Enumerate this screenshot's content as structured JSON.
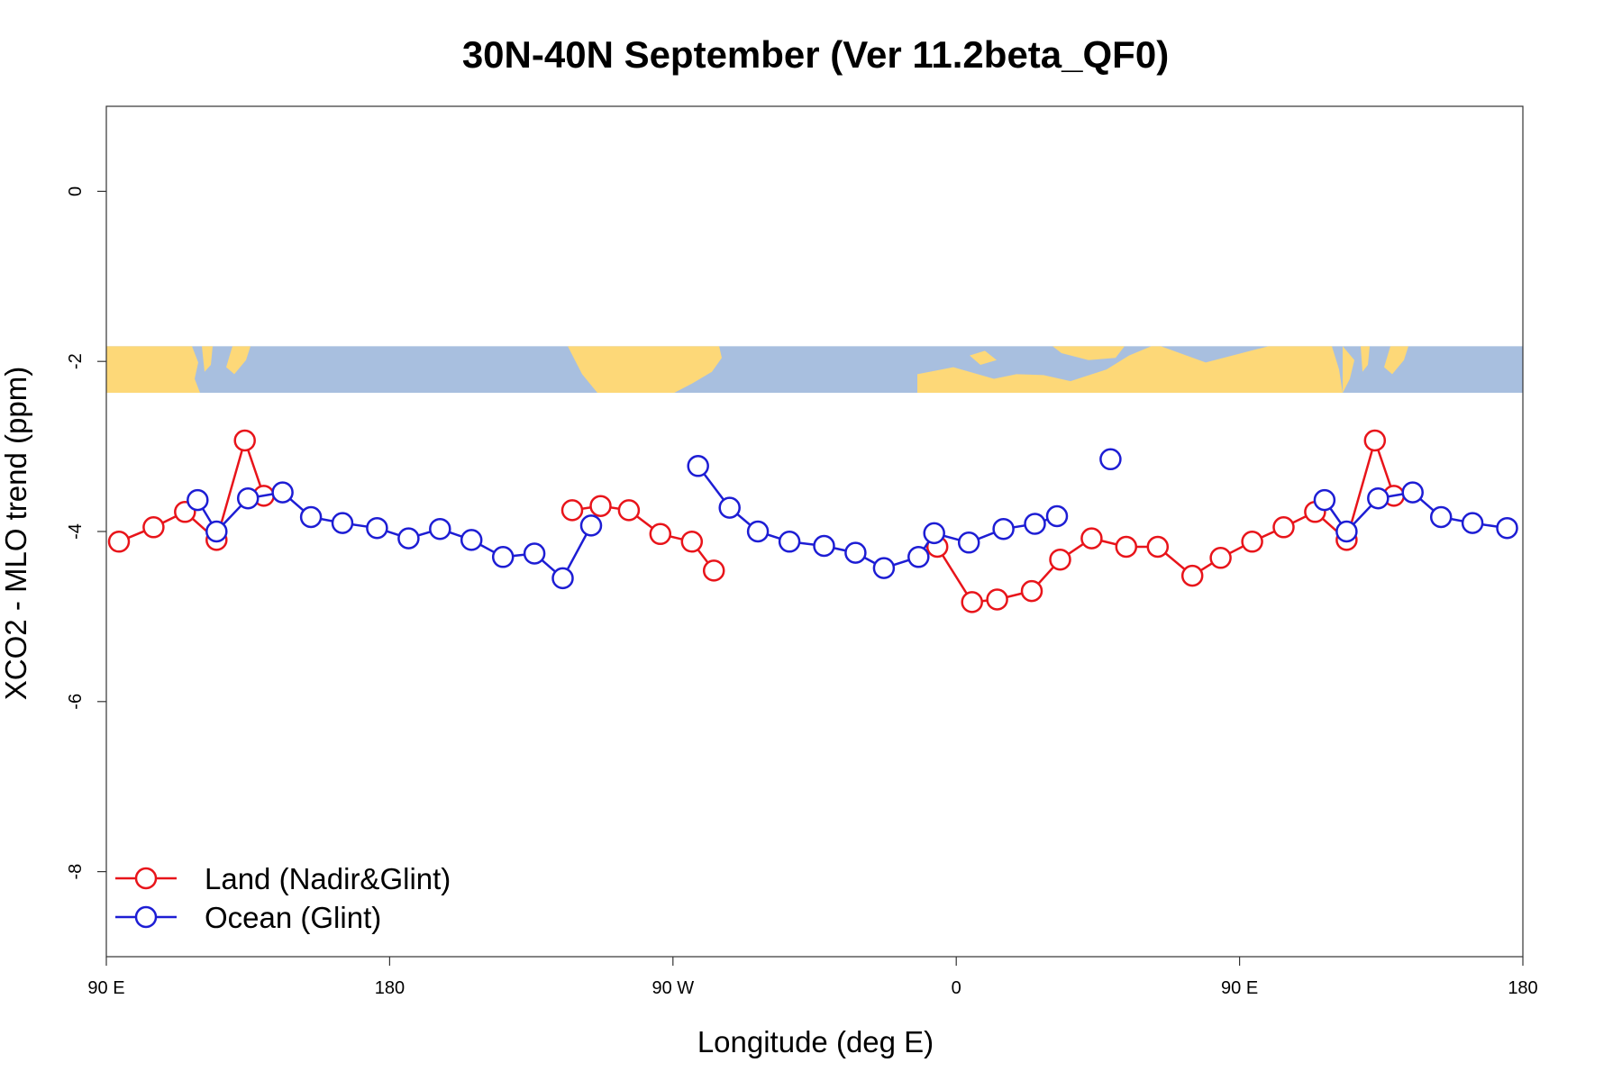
{
  "chart_data": {
    "type": "line",
    "title": "30N-40N September (Ver 11.2beta_QF0)",
    "xlabel": "Longitude (deg E)",
    "ylabel": "XCO2 - MLO trend (ppm)",
    "xlim": [
      90,
      540
    ],
    "ylim": [
      -9.0,
      1.0
    ],
    "x_ticks": [
      {
        "value": 90,
        "label": "90 E"
      },
      {
        "value": 180,
        "label": "180"
      },
      {
        "value": 270,
        "label": "90 W"
      },
      {
        "value": 360,
        "label": "0"
      },
      {
        "value": 450,
        "label": "90 E"
      },
      {
        "value": 540,
        "label": "180"
      }
    ],
    "y_ticks": [
      {
        "value": 0,
        "label": "0"
      },
      {
        "value": -2,
        "label": "-2"
      },
      {
        "value": -4,
        "label": "-4"
      },
      {
        "value": -6,
        "label": "-6"
      },
      {
        "value": -8,
        "label": "-8"
      }
    ],
    "map_band": {
      "y_top": -1.82,
      "y_bottom": -2.37,
      "land_color": "#fdd878",
      "ocean_color": "#a8bfdf"
    },
    "legend_position": "bottom-left",
    "series": [
      {
        "name": "Land (Nadir&Glint)",
        "color": "#e8141a",
        "segments": [
          [
            [
              94,
              -4.12
            ],
            [
              105,
              -3.95
            ],
            [
              115,
              -3.77
            ],
            [
              125,
              -4.1
            ],
            [
              134,
              -2.93
            ],
            [
              140,
              -3.58
            ]
          ],
          [
            [
              238,
              -3.75
            ],
            [
              247,
              -3.7
            ],
            [
              256,
              -3.75
            ],
            [
              266,
              -4.03
            ],
            [
              276,
              -4.12
            ],
            [
              283,
              -4.46
            ]
          ],
          [
            [
              354,
              -4.18
            ],
            [
              365,
              -4.83
            ],
            [
              373,
              -4.8
            ],
            [
              384,
              -4.7
            ],
            [
              393,
              -4.33
            ],
            [
              403,
              -4.08
            ],
            [
              414,
              -4.18
            ],
            [
              424,
              -4.18
            ],
            [
              435,
              -4.52
            ],
            [
              444,
              -4.31
            ],
            [
              454,
              -4.12
            ],
            [
              464,
              -3.95
            ],
            [
              474,
              -3.77
            ],
            [
              484,
              -4.1
            ],
            [
              493,
              -2.93
            ],
            [
              499,
              -3.58
            ]
          ]
        ]
      },
      {
        "name": "Ocean (Glint)",
        "color": "#1d1dd4",
        "segments": [
          [
            [
              119,
              -3.63
            ],
            [
              125,
              -4.0
            ],
            [
              135,
              -3.61
            ],
            [
              146,
              -3.54
            ],
            [
              155,
              -3.83
            ],
            [
              165,
              -3.9
            ],
            [
              176,
              -3.96
            ],
            [
              186,
              -4.08
            ],
            [
              196,
              -3.97
            ],
            [
              206,
              -4.1
            ],
            [
              216,
              -4.3
            ],
            [
              226,
              -4.26
            ],
            [
              235,
              -4.55
            ],
            [
              244,
              -3.93
            ]
          ],
          [
            [
              278,
              -3.23
            ],
            [
              288,
              -3.72
            ],
            [
              297,
              -4.0
            ],
            [
              307,
              -4.12
            ],
            [
              318,
              -4.17
            ],
            [
              328,
              -4.25
            ],
            [
              337,
              -4.43
            ],
            [
              348,
              -4.3
            ],
            [
              353,
              -4.02
            ],
            [
              364,
              -4.13
            ],
            [
              375,
              -3.97
            ],
            [
              385,
              -3.91
            ],
            [
              392,
              -3.82
            ]
          ],
          [
            [
              409,
              -3.15
            ]
          ],
          [
            [
              477,
              -3.63
            ],
            [
              484,
              -4.0
            ],
            [
              494,
              -3.61
            ],
            [
              505,
              -3.54
            ],
            [
              514,
              -3.83
            ],
            [
              524,
              -3.9
            ],
            [
              535,
              -3.96
            ]
          ]
        ]
      }
    ]
  }
}
